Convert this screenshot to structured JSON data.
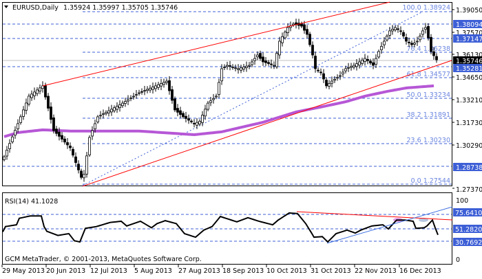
{
  "header": {
    "symbol": "EURUSD,Daily",
    "open": "1.35924",
    "high": "1.35997",
    "low": "1.35705",
    "close": "1.35746"
  },
  "rsi_panel": {
    "label": "RSI(14) 41.1028",
    "levels": [
      "75.64103",
      "51.28205",
      "30.76923"
    ],
    "max_label": "100",
    "min_label": "0"
  },
  "footer": {
    "copyright": "GCM MetaTrader, © 2001-2013, MetaQuotes Software Corp."
  },
  "price_axis": {
    "ticks": [
      "1.39050",
      "1.37570",
      "1.36130",
      "1.34650",
      "1.33210",
      "1.31730",
      "1.30290",
      "1.27370"
    ],
    "highlighted": [
      "1.38094",
      "1.37147",
      "1.35281",
      "1.28738"
    ],
    "current": "1.35746"
  },
  "fibonacci": [
    {
      "level": "100.0",
      "price": "1.38924"
    },
    {
      "level": "76.4",
      "price": "1.36238"
    },
    {
      "level": "61.8",
      "price": "1.34577"
    },
    {
      "level": "50.0",
      "price": "1.33234"
    },
    {
      "level": "38.2",
      "price": "1.31891"
    },
    {
      "level": "23.6",
      "price": "1.30230"
    },
    {
      "level": "0.0",
      "price": "1.27544"
    }
  ],
  "time_axis": [
    "29 May 2013",
    "20 Jun 2013",
    "12 Jul 2013",
    "5 Aug 2013",
    "27 Aug 2013",
    "18 Sep 2013",
    "10 Oct 2013",
    "31 Oct 2013",
    "22 Nov 2013",
    "16 Dec 2013"
  ],
  "colors": {
    "bull": "#ffffff",
    "bear": "#000000",
    "ma": "#b657d6",
    "trendline": "#ff0000",
    "fib": "#3d5fd6",
    "rsi": "#000000"
  },
  "chart_data": {
    "type": "candlestick",
    "title": "EURUSD,Daily",
    "ylim": [
      1.2737,
      1.3905
    ],
    "close_points": [
      [
        0,
        1.2936
      ],
      [
        5,
        1.3154
      ],
      [
        9,
        1.3335
      ],
      [
        14,
        1.3403
      ],
      [
        18,
        1.3108
      ],
      [
        24,
        1.2995
      ],
      [
        28,
        1.28
      ],
      [
        29,
        1.282
      ],
      [
        31,
        1.3063
      ],
      [
        34,
        1.3199
      ],
      [
        43,
        1.3289
      ],
      [
        49,
        1.3357
      ],
      [
        52,
        1.338
      ],
      [
        55,
        1.3403
      ],
      [
        59,
        1.3434
      ],
      [
        62,
        1.3244
      ],
      [
        65,
        1.3199
      ],
      [
        69,
        1.3154
      ],
      [
        71,
        1.317
      ],
      [
        74,
        1.3289
      ],
      [
        77,
        1.3335
      ],
      [
        79,
        1.3516
      ],
      [
        81,
        1.3538
      ],
      [
        85,
        1.3516
      ],
      [
        89,
        1.3538
      ],
      [
        92,
        1.3606
      ],
      [
        94,
        1.3561
      ],
      [
        98,
        1.3538
      ],
      [
        100,
        1.3697
      ],
      [
        103,
        1.3787
      ],
      [
        105,
        1.381
      ],
      [
        108,
        1.3796
      ],
      [
        110,
        1.3742
      ],
      [
        112,
        1.3606
      ],
      [
        113,
        1.3516
      ],
      [
        115,
        1.3493
      ],
      [
        117,
        1.3403
      ],
      [
        119,
        1.3434
      ],
      [
        122,
        1.347
      ],
      [
        124,
        1.3516
      ],
      [
        127,
        1.3538
      ],
      [
        129,
        1.3561
      ],
      [
        131,
        1.3584
      ],
      [
        134,
        1.3538
      ],
      [
        136,
        1.3629
      ],
      [
        138,
        1.3697
      ],
      [
        140,
        1.3765
      ],
      [
        142,
        1.3787
      ],
      [
        144,
        1.3765
      ],
      [
        146,
        1.3697
      ],
      [
        148,
        1.3674
      ],
      [
        150,
        1.3697
      ],
      [
        152,
        1.3765
      ],
      [
        153,
        1.3787
      ],
      [
        154,
        1.3719
      ],
      [
        155,
        1.3629
      ],
      [
        157,
        1.35746
      ]
    ],
    "moving_average_points": [
      [
        0,
        1.3068
      ],
      [
        5,
        1.3095
      ],
      [
        14,
        1.3113
      ],
      [
        24,
        1.3105
      ],
      [
        49,
        1.3105
      ],
      [
        69,
        1.3081
      ],
      [
        79,
        1.31
      ],
      [
        94,
        1.3163
      ],
      [
        106,
        1.3231
      ],
      [
        116,
        1.3267
      ],
      [
        124,
        1.3298
      ],
      [
        131,
        1.3335
      ],
      [
        139,
        1.3366
      ],
      [
        146,
        1.3389
      ],
      [
        156,
        1.3403
      ]
    ],
    "rsi": {
      "ylim": [
        0,
        100
      ],
      "levels": [
        75.64103,
        51.28205,
        30.76923
      ],
      "last": 41.1028,
      "points": [
        [
          0,
          46
        ],
        [
          1,
          55
        ],
        [
          5,
          58
        ],
        [
          6,
          69
        ],
        [
          10,
          73
        ],
        [
          14,
          73
        ],
        [
          15,
          55
        ],
        [
          16,
          47
        ],
        [
          20,
          40
        ],
        [
          24,
          43
        ],
        [
          26,
          31
        ],
        [
          28,
          29
        ],
        [
          30,
          52
        ],
        [
          34,
          55
        ],
        [
          39,
          62
        ],
        [
          43,
          64
        ],
        [
          45,
          56
        ],
        [
          50,
          64
        ],
        [
          54,
          53
        ],
        [
          56,
          60
        ],
        [
          59,
          65
        ],
        [
          63,
          60
        ],
        [
          66,
          43
        ],
        [
          70,
          37
        ],
        [
          73,
          49
        ],
        [
          76,
          55
        ],
        [
          79,
          72
        ],
        [
          83,
          66
        ],
        [
          85,
          63
        ],
        [
          89,
          70
        ],
        [
          93,
          64
        ],
        [
          98,
          58
        ],
        [
          100,
          66
        ],
        [
          104,
          78
        ],
        [
          107,
          77
        ],
        [
          110,
          60
        ],
        [
          112,
          45
        ],
        [
          113,
          37
        ],
        [
          116,
          38
        ],
        [
          118,
          29
        ],
        [
          121,
          43
        ],
        [
          125,
          49
        ],
        [
          128,
          44
        ],
        [
          130,
          49
        ],
        [
          134,
          56
        ],
        [
          138,
          58
        ],
        [
          140,
          51
        ],
        [
          143,
          66
        ],
        [
          146,
          66
        ],
        [
          149,
          64
        ],
        [
          150,
          52
        ],
        [
          153,
          53
        ],
        [
          154,
          56
        ],
        [
          156,
          66
        ],
        [
          157,
          53
        ],
        [
          158,
          41
        ]
      ]
    }
  }
}
